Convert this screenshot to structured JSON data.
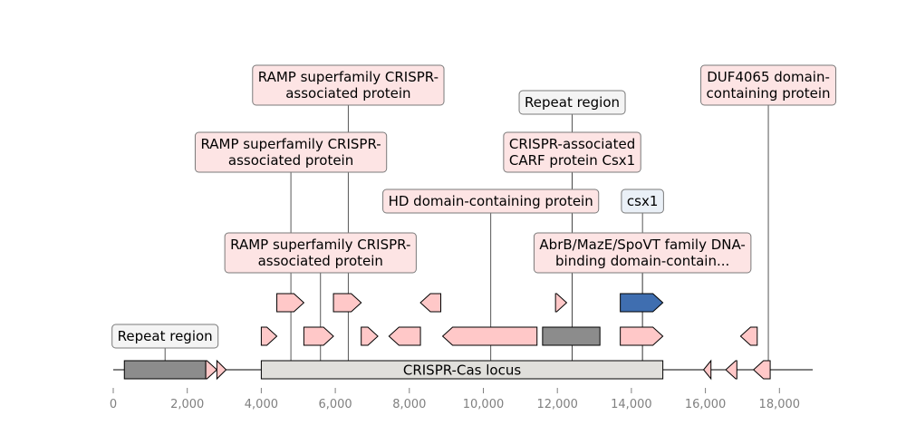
{
  "locus": {
    "name": "CRISPR-Cas locus",
    "start": 4000,
    "end": 14850,
    "color": "#e0dfdb",
    "sequence_start": 0,
    "sequence_end": 18900
  },
  "axis": {
    "ticks": [
      0,
      2000,
      4000,
      6000,
      8000,
      10000,
      12000,
      14000,
      16000,
      18000
    ],
    "tick_labels": [
      "0",
      "2,000",
      "4,000",
      "6,000",
      "8,000",
      "10,000",
      "12,000",
      "14,000",
      "16,000",
      "18,000"
    ]
  },
  "colors": {
    "repeat_region": "#8c8c8c",
    "gene": "#ffc8c8",
    "csx1": "#3f6eb0",
    "repeat_label_bg": "#f4f4f4",
    "gene_label_bg": "#fde4e4",
    "csx1_label_bg": "#eaf0f7"
  },
  "features": [
    {
      "id": "rep1",
      "type": "repeat",
      "row": 0,
      "start": 300,
      "end": 2500
    },
    {
      "id": "g1",
      "type": "gene",
      "row": 0,
      "start": 2500,
      "end": 2800,
      "strand": 1
    },
    {
      "id": "g2",
      "type": "gene",
      "row": 0,
      "start": 2800,
      "end": 3050,
      "strand": 1
    },
    {
      "id": "g3",
      "type": "gene",
      "row": 1,
      "start": 4000,
      "end": 4420,
      "strand": 1
    },
    {
      "id": "g4",
      "type": "gene",
      "row": 2,
      "start": 4420,
      "end": 5150,
      "strand": 1
    },
    {
      "id": "g5",
      "type": "gene",
      "row": 1,
      "start": 5150,
      "end": 5950,
      "strand": 1
    },
    {
      "id": "g6",
      "type": "gene",
      "row": 2,
      "start": 5950,
      "end": 6700,
      "strand": 1
    },
    {
      "id": "g7",
      "type": "gene",
      "row": 1,
      "start": 6700,
      "end": 7150,
      "strand": 1
    },
    {
      "id": "g8",
      "type": "gene",
      "row": 1,
      "start": 7450,
      "end": 8300,
      "strand": -1
    },
    {
      "id": "g9",
      "type": "gene",
      "row": 2,
      "start": 8300,
      "end": 8850,
      "strand": -1
    },
    {
      "id": "g10",
      "type": "gene",
      "row": 1,
      "start": 8900,
      "end": 11450,
      "strand": -1
    },
    {
      "id": "rep2",
      "type": "repeat",
      "row": 1,
      "start": 11600,
      "end": 13150
    },
    {
      "id": "g11",
      "type": "gene",
      "row": 2,
      "start": 11950,
      "end": 12250,
      "strand": 1
    },
    {
      "id": "csx1",
      "type": "csx1",
      "row": 2,
      "start": 13700,
      "end": 14850,
      "strand": 1
    },
    {
      "id": "g12",
      "type": "gene",
      "row": 1,
      "start": 13700,
      "end": 14850,
      "strand": 1
    },
    {
      "id": "g13",
      "type": "gene",
      "row": 0,
      "start": 15950,
      "end": 16150,
      "strand": -1
    },
    {
      "id": "g14",
      "type": "gene",
      "row": 0,
      "start": 16550,
      "end": 16850,
      "strand": -1
    },
    {
      "id": "g15",
      "type": "gene",
      "row": 0,
      "start": 17300,
      "end": 17750,
      "strand": -1
    },
    {
      "id": "g16",
      "type": "gene",
      "row": 1,
      "start": 16950,
      "end": 17400,
      "strand": -1
    }
  ],
  "labels": [
    {
      "text": "Repeat region",
      "kind": "repeat",
      "anchor": 1400,
      "level": 0
    },
    {
      "text": "RAMP superfamily CRISPR-\nassociated protein",
      "kind": "gene",
      "anchor": 4800,
      "level": 3
    },
    {
      "text": "RAMP superfamily CRISPR-\nassociated protein",
      "kind": "gene",
      "anchor": 5600,
      "level": 1
    },
    {
      "text": "RAMP superfamily CRISPR-\nassociated protein",
      "kind": "gene",
      "anchor": 6350,
      "level": 4
    },
    {
      "text": "HD domain-containing protein",
      "kind": "gene",
      "anchor": 10200,
      "level": 2
    },
    {
      "text": "Repeat region",
      "kind": "repeat",
      "anchor": 12400,
      "level": 5
    },
    {
      "text": "CRISPR-associated\nCARF protein Csx1",
      "kind": "gene",
      "anchor": 12400,
      "level": 3
    },
    {
      "text": "csx1",
      "kind": "csx1",
      "anchor": 14300,
      "level": 2
    },
    {
      "text": "AbrB/MazE/SpoVT family DNA-\nbinding domain-contain...",
      "kind": "gene",
      "anchor": 14300,
      "level": 1
    },
    {
      "text": "DUF4065 domain-\ncontaining protein",
      "kind": "gene",
      "anchor": 17700,
      "level": 4
    }
  ]
}
